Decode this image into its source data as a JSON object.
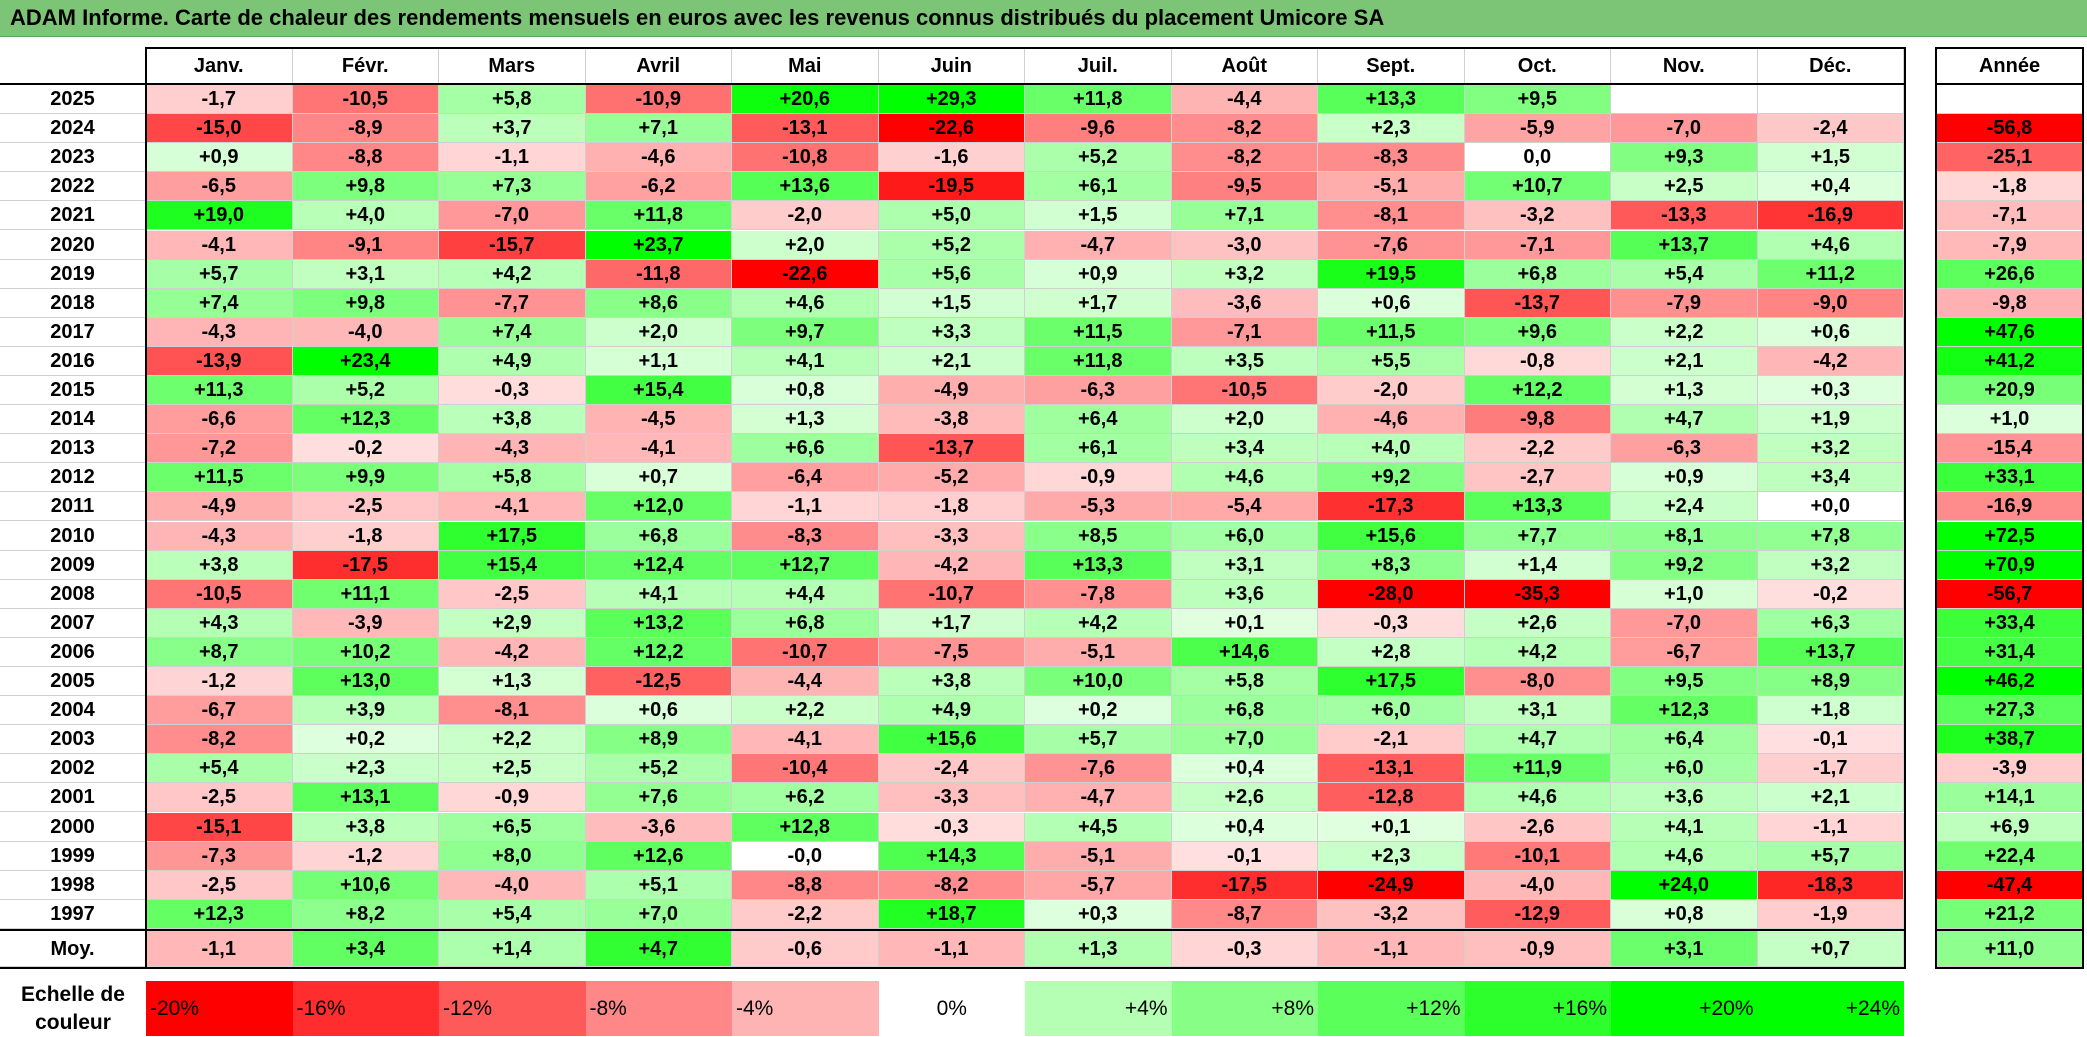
{
  "title": "ADAM Informe. Carte de chaleur des rendements mensuels en euros avec les revenus connus distribués du placement Umicore SA",
  "colors": {
    "title_bg": "#7dc576",
    "negative_max": "#ff0000",
    "neutral": "#ffffff",
    "positive_max": "#00ff00"
  },
  "chart_data": {
    "type": "heatmap",
    "months": [
      "Janv.",
      "Févr.",
      "Mars",
      "Avril",
      "Mai",
      "Juin",
      "Juil.",
      "Août",
      "Sept.",
      "Oct.",
      "Nov.",
      "Déc."
    ],
    "year_header": "Année",
    "avg_label": "Moy.",
    "rows": [
      {
        "year": "2025",
        "values": [
          "-1,7",
          "-10,5",
          "+5,8",
          "-10,9",
          "+20,6",
          "+29,3",
          "+11,8",
          "-4,4",
          "+13,3",
          "+9,5",
          "",
          ""
        ],
        "annual": ""
      },
      {
        "year": "2024",
        "values": [
          "-15,0",
          "-8,9",
          "+3,7",
          "+7,1",
          "-13,1",
          "-22,6",
          "-9,6",
          "-8,2",
          "+2,3",
          "-5,9",
          "-7,0",
          "-2,4"
        ],
        "annual": "-56,8"
      },
      {
        "year": "2023",
        "values": [
          "+0,9",
          "-8,8",
          "-1,1",
          "-4,6",
          "-10,8",
          "-1,6",
          "+5,2",
          "-8,2",
          "-8,3",
          "0,0",
          "+9,3",
          "+1,5"
        ],
        "annual": "-25,1"
      },
      {
        "year": "2022",
        "values": [
          "-6,5",
          "+9,8",
          "+7,3",
          "-6,2",
          "+13,6",
          "-19,5",
          "+6,1",
          "-9,5",
          "-5,1",
          "+10,7",
          "+2,5",
          "+0,4"
        ],
        "annual": "-1,8"
      },
      {
        "year": "2021",
        "values": [
          "+19,0",
          "+4,0",
          "-7,0",
          "+11,8",
          "-2,0",
          "+5,0",
          "+1,5",
          "+7,1",
          "-8,1",
          "-3,2",
          "-13,3",
          "-16,9"
        ],
        "annual": "-7,1"
      },
      {
        "year": "2020",
        "values": [
          "-4,1",
          "-9,1",
          "-15,7",
          "+23,7",
          "+2,0",
          "+5,2",
          "-4,7",
          "-3,0",
          "-7,6",
          "-7,1",
          "+13,7",
          "+4,6"
        ],
        "annual": "-7,9"
      },
      {
        "year": "2019",
        "values": [
          "+5,7",
          "+3,1",
          "+4,2",
          "-11,8",
          "-22,6",
          "+5,6",
          "+0,9",
          "+3,2",
          "+19,5",
          "+6,8",
          "+5,4",
          "+11,2"
        ],
        "annual": "+26,6"
      },
      {
        "year": "2018",
        "values": [
          "+7,4",
          "+9,8",
          "-7,7",
          "+8,6",
          "+4,6",
          "+1,5",
          "+1,7",
          "-3,6",
          "+0,6",
          "-13,7",
          "-7,9",
          "-9,0"
        ],
        "annual": "-9,8"
      },
      {
        "year": "2017",
        "values": [
          "-4,3",
          "-4,0",
          "+7,4",
          "+2,0",
          "+9,7",
          "+3,3",
          "+11,5",
          "-7,1",
          "+11,5",
          "+9,6",
          "+2,2",
          "+0,6"
        ],
        "annual": "+47,6"
      },
      {
        "year": "2016",
        "values": [
          "-13,9",
          "+23,4",
          "+4,9",
          "+1,1",
          "+4,1",
          "+2,1",
          "+11,8",
          "+3,5",
          "+5,5",
          "-0,8",
          "+2,1",
          "-4,2"
        ],
        "annual": "+41,2"
      },
      {
        "year": "2015",
        "values": [
          "+11,3",
          "+5,2",
          "-0,3",
          "+15,4",
          "+0,8",
          "-4,9",
          "-6,3",
          "-10,5",
          "-2,0",
          "+12,2",
          "+1,3",
          "+0,3"
        ],
        "annual": "+20,9"
      },
      {
        "year": "2014",
        "values": [
          "-6,6",
          "+12,3",
          "+3,8",
          "-4,5",
          "+1,3",
          "-3,8",
          "+6,4",
          "+2,0",
          "-4,6",
          "-9,8",
          "+4,7",
          "+1,9"
        ],
        "annual": "+1,0"
      },
      {
        "year": "2013",
        "values": [
          "-7,2",
          "-0,2",
          "-4,3",
          "-4,1",
          "+6,6",
          "-13,7",
          "+6,1",
          "+3,4",
          "+4,0",
          "-2,2",
          "-6,3",
          "+3,2"
        ],
        "annual": "-15,4"
      },
      {
        "year": "2012",
        "values": [
          "+11,5",
          "+9,9",
          "+5,8",
          "+0,7",
          "-6,4",
          "-5,2",
          "-0,9",
          "+4,6",
          "+9,2",
          "-2,7",
          "+0,9",
          "+3,4"
        ],
        "annual": "+33,1"
      },
      {
        "year": "2011",
        "values": [
          "-4,9",
          "-2,5",
          "-4,1",
          "+12,0",
          "-1,1",
          "-1,8",
          "-5,3",
          "-5,4",
          "-17,3",
          "+13,3",
          "+2,4",
          "+0,0"
        ],
        "annual": "-16,9"
      },
      {
        "year": "2010",
        "values": [
          "-4,3",
          "-1,8",
          "+17,5",
          "+6,8",
          "-8,3",
          "-3,3",
          "+8,5",
          "+6,0",
          "+15,6",
          "+7,7",
          "+8,1",
          "+7,8"
        ],
        "annual": "+72,5"
      },
      {
        "year": "2009",
        "values": [
          "+3,8",
          "-17,5",
          "+15,4",
          "+12,4",
          "+12,7",
          "-4,2",
          "+13,3",
          "+3,1",
          "+8,3",
          "+1,4",
          "+9,2",
          "+3,2"
        ],
        "annual": "+70,9"
      },
      {
        "year": "2008",
        "values": [
          "-10,5",
          "+11,1",
          "-2,5",
          "+4,1",
          "+4,4",
          "-10,7",
          "-7,8",
          "+3,6",
          "-28,0",
          "-35,3",
          "+1,0",
          "-0,2"
        ],
        "annual": "-56,7"
      },
      {
        "year": "2007",
        "values": [
          "+4,3",
          "-3,9",
          "+2,9",
          "+13,2",
          "+6,8",
          "+1,7",
          "+4,2",
          "+0,1",
          "-0,3",
          "+2,6",
          "-7,0",
          "+6,3"
        ],
        "annual": "+33,4"
      },
      {
        "year": "2006",
        "values": [
          "+8,7",
          "+10,2",
          "-4,2",
          "+12,2",
          "-10,7",
          "-7,5",
          "-5,1",
          "+14,6",
          "+2,8",
          "+4,2",
          "-6,7",
          "+13,7"
        ],
        "annual": "+31,4"
      },
      {
        "year": "2005",
        "values": [
          "-1,2",
          "+13,0",
          "+1,3",
          "-12,5",
          "-4,4",
          "+3,8",
          "+10,0",
          "+5,8",
          "+17,5",
          "-8,0",
          "+9,5",
          "+8,9"
        ],
        "annual": "+46,2"
      },
      {
        "year": "2004",
        "values": [
          "-6,7",
          "+3,9",
          "-8,1",
          "+0,6",
          "+2,2",
          "+4,9",
          "+0,2",
          "+6,8",
          "+6,0",
          "+3,1",
          "+12,3",
          "+1,8"
        ],
        "annual": "+27,3"
      },
      {
        "year": "2003",
        "values": [
          "-8,2",
          "+0,2",
          "+2,2",
          "+8,9",
          "-4,1",
          "+15,6",
          "+5,7",
          "+7,0",
          "-2,1",
          "+4,7",
          "+6,4",
          "-0,1"
        ],
        "annual": "+38,7"
      },
      {
        "year": "2002",
        "values": [
          "+5,4",
          "+2,3",
          "+2,5",
          "+5,2",
          "-10,4",
          "-2,4",
          "-7,6",
          "+0,4",
          "-13,1",
          "+11,9",
          "+6,0",
          "-1,7"
        ],
        "annual": "-3,9"
      },
      {
        "year": "2001",
        "values": [
          "-2,5",
          "+13,1",
          "-0,9",
          "+7,6",
          "+6,2",
          "-3,3",
          "-4,7",
          "+2,6",
          "-12,8",
          "+4,6",
          "+3,6",
          "+2,1"
        ],
        "annual": "+14,1"
      },
      {
        "year": "2000",
        "values": [
          "-15,1",
          "+3,8",
          "+6,5",
          "-3,6",
          "+12,8",
          "-0,3",
          "+4,5",
          "+0,4",
          "+0,1",
          "-2,6",
          "+4,1",
          "-1,1"
        ],
        "annual": "+6,9"
      },
      {
        "year": "1999",
        "values": [
          "-7,3",
          "-1,2",
          "+8,0",
          "+12,6",
          "-0,0",
          "+14,3",
          "-5,1",
          "-0,1",
          "+2,3",
          "-10,1",
          "+4,6",
          "+5,7"
        ],
        "annual": "+22,4"
      },
      {
        "year": "1998",
        "values": [
          "-2,5",
          "+10,6",
          "-4,0",
          "+5,1",
          "-8,8",
          "-8,2",
          "-5,7",
          "-17,5",
          "-24,9",
          "-4,0",
          "+24,0",
          "-18,3"
        ],
        "annual": "-47,4"
      },
      {
        "year": "1997",
        "values": [
          "+12,3",
          "+8,2",
          "+5,4",
          "+7,0",
          "-2,2",
          "+18,7",
          "+0,3",
          "-8,7",
          "-3,2",
          "-12,9",
          "+0,8",
          "-1,9"
        ],
        "annual": "+21,2"
      }
    ],
    "averages": [
      "-1,1",
      "+3,4",
      "+1,4",
      "+4,7",
      "-0,6",
      "-1,1",
      "+1,3",
      "-0,3",
      "-1,1",
      "-0,9",
      "+3,1",
      "+0,7"
    ],
    "avg_annual": "+11,0"
  },
  "scale": {
    "title": "Echelle de couleur",
    "labels": [
      "-20%",
      "-16%",
      "-12%",
      "-8%",
      "-4%",
      "0%",
      "+4%",
      "+8%",
      "+12%",
      "+16%",
      "+20%",
      "+24%"
    ],
    "values": [
      -20,
      -16,
      -12,
      -8,
      -4,
      0,
      4,
      8,
      12,
      16,
      20,
      24
    ]
  }
}
